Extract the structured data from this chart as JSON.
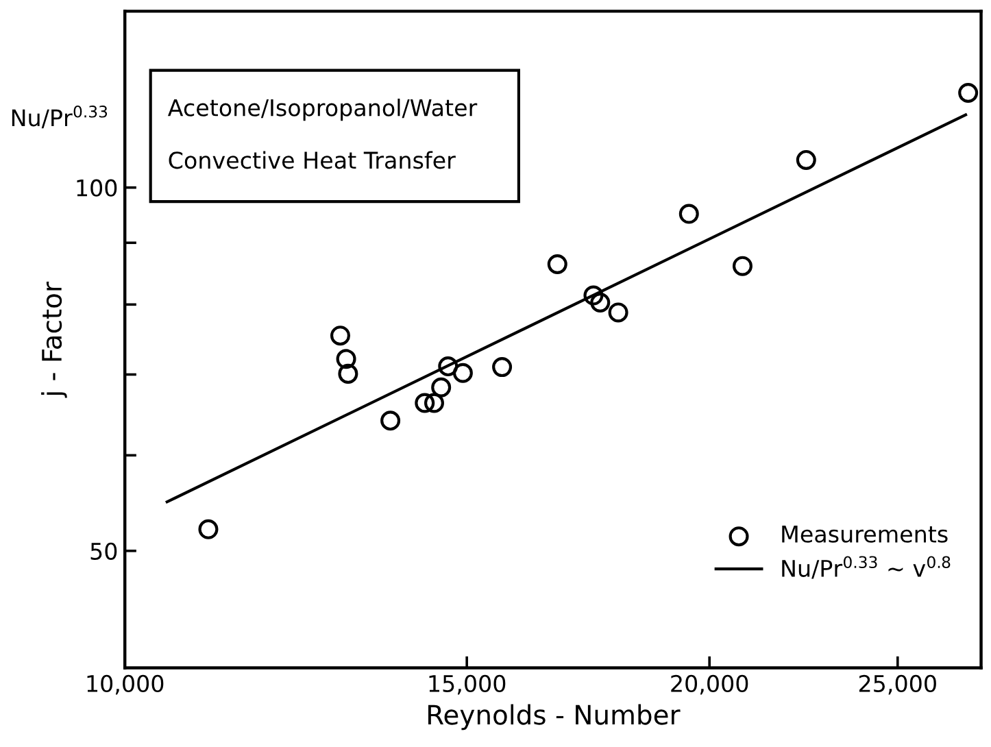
{
  "chart_data": {
    "type": "scatter",
    "xlabel": "Reynolds - Number",
    "ylabel": "j - Factor",
    "annotations": [
      "Acetone/Isopropanol/Water",
      "Convective Heat Transfer",
      "Nu/Pr$^{0.33}$"
    ],
    "log": "xy",
    "marker": "circle",
    "legend": "bottom right",
    "grid": false,
    "xlim": [
      10000,
      27600
    ],
    "xticks": [
      {
        "value": 10000,
        "label": "10,000"
      },
      {
        "value": 15000,
        "label": "15,000"
      },
      {
        "value": 20000,
        "label": "20,000"
      },
      {
        "value": 25000,
        "label": "25,000"
      }
    ],
    "ylim": [
      40,
      140
    ],
    "yticks": [
      50,
      {
        "value": 60,
        "label": null
      },
      {
        "value": 70,
        "label": null
      },
      {
        "value": 80,
        "label": null
      },
      {
        "value": 90,
        "label": null
      },
      100
    ],
    "series": [
      {
        "name": "Measurements",
        "color": "#000000",
        "x": [
          11040,
          12910,
          13000,
          13030,
          13700,
          14270,
          14430,
          14550,
          14670,
          14930,
          15640,
          16700,
          17430,
          17570,
          17950,
          19520,
          20800,
          22430,
          27180
        ],
        "values": [
          52.1,
          75.4,
          72.1,
          70.1,
          64.1,
          66.3,
          66.3,
          68.3,
          71.1,
          70.2,
          71.0,
          86.4,
          81.4,
          80.3,
          78.8,
          95.1,
          86.1,
          105.4,
          119.8
        ]
      },
      {
        "name": "Nu/Pr$^{0.33}$ ∼ v$^{0.8}$",
        "type": "line",
        "color": "#000000",
        "line_style": "solid",
        "marker": "none",
        "x": [
          10513,
          27100
        ],
        "values": [
          54.9,
          114.9
        ]
      }
    ]
  }
}
